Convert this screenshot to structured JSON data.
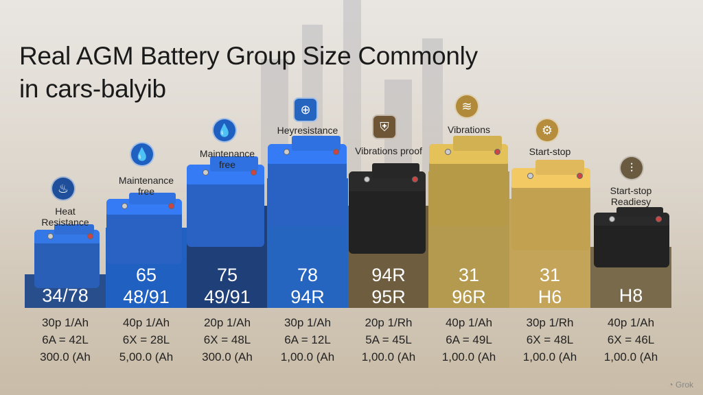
{
  "title_line1": "Real AGM Battery Group Size Commonly",
  "title_line2": "in cars-balyib",
  "watermark": "Grok",
  "columns": [
    {
      "feature": "Heat Resistance",
      "icon": "flame-icon",
      "glyph": "♨",
      "codes": [
        "34/78"
      ],
      "specs": [
        "30p 1/Ah",
        "6A = 42L",
        "300.0 (Ah"
      ],
      "bar": "#284f8c",
      "battery": "#2a5fb8",
      "iconbg": "#1f4f9a"
    },
    {
      "feature": "Maintenance free",
      "icon": "droplet-icon",
      "glyph": "💧",
      "codes": [
        "65",
        "48/91"
      ],
      "specs": [
        "40p 1/Ah",
        "6X = 28L",
        "5,00.0 (Ah"
      ],
      "bar": "#1f60c0",
      "battery": "#2a62c4",
      "iconbg": "#1f5fbf"
    },
    {
      "feature": "Maintenance free",
      "icon": "droplet-icon",
      "glyph": "💧",
      "codes": [
        "75",
        "49/91"
      ],
      "specs": [
        "20p 1/Ah",
        "6X = 48L",
        "300.0 (Ah"
      ],
      "bar": "#1e3f78",
      "battery": "#2a62c4",
      "iconbg": "#1f5fbf"
    },
    {
      "feature": "Heyresistance",
      "icon": "plug-icon",
      "glyph": "⊕",
      "codes": [
        "78",
        "94R"
      ],
      "specs": [
        "30p 1/Ah",
        "6A = 12L",
        "1,00.0 (Ah"
      ],
      "bar": "#2565c0",
      "battery": "#2a62c4",
      "iconbg": "#2565c0"
    },
    {
      "feature": "Vibrations proof",
      "icon": "shield-icon",
      "glyph": "⛨",
      "codes": [
        "94R",
        "95R"
      ],
      "specs": [
        "20p 1/Rh",
        "5A = 45L",
        "1,00.0 (Ah"
      ],
      "bar": "#6e5d3e",
      "battery": "#222",
      "iconbg": "#6e5535"
    },
    {
      "feature": "Vibrations",
      "icon": "vibration-icon",
      "glyph": "≋",
      "codes": [
        "31",
        "96R"
      ],
      "specs": [
        "40p 1/Ah",
        "6A = 49L",
        "1,00.0 (Ah"
      ],
      "bar": "#b39a4e",
      "battery": "#b79a48",
      "iconbg": "#b08a3a"
    },
    {
      "feature": "Start-stop",
      "icon": "gear-icon",
      "glyph": "⚙",
      "codes": [
        "31",
        "H6"
      ],
      "specs": [
        "30p 1/Rh",
        "6X = 48L",
        "1,00.0 (Ah"
      ],
      "bar": "#c4a458",
      "battery": "#c2a150",
      "iconbg": "#b58d3c"
    },
    {
      "feature": "Start-stop Readiesy",
      "icon": "sliders-icon",
      "glyph": "⫶",
      "codes": [
        "H8"
      ],
      "specs": [
        "40p 1/Ah",
        "6X = 46L",
        "1,00.0 (Ah"
      ],
      "bar": "#7a6a4c",
      "battery": "#222",
      "iconbg": "#6a5a40"
    }
  ]
}
